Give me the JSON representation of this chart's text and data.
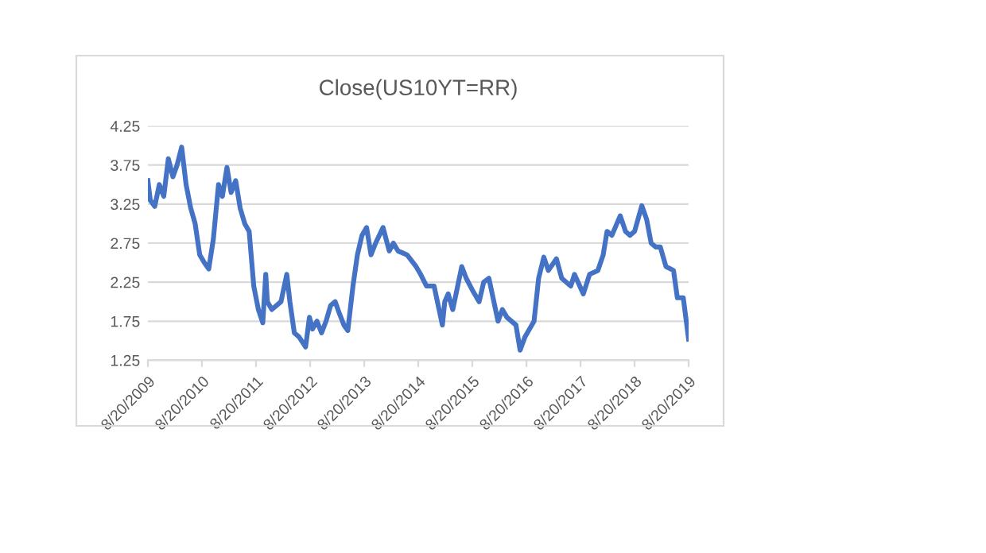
{
  "chart_data": {
    "type": "line",
    "title": "Close(US10YT=RR)",
    "x": [
      "2009-08-20",
      "2009-09-05",
      "2009-10-05",
      "2009-11-05",
      "2009-12-05",
      "2010-01-05",
      "2010-02-05",
      "2010-03-05",
      "2010-04-05",
      "2010-05-05",
      "2010-06-05",
      "2010-07-05",
      "2010-08-05",
      "2010-09-05",
      "2010-10-05",
      "2010-11-05",
      "2010-12-10",
      "2011-01-05",
      "2011-02-05",
      "2011-03-05",
      "2011-04-05",
      "2011-05-05",
      "2011-06-05",
      "2011-07-05",
      "2011-08-05",
      "2011-09-05",
      "2011-10-05",
      "2011-10-25",
      "2011-11-05",
      "2011-12-05",
      "2012-01-05",
      "2012-02-05",
      "2012-03-15",
      "2012-04-05",
      "2012-05-05",
      "2012-06-05",
      "2012-07-20",
      "2012-08-15",
      "2012-09-05",
      "2012-10-05",
      "2012-11-05",
      "2012-12-05",
      "2013-01-05",
      "2013-02-05",
      "2013-03-05",
      "2013-04-05",
      "2013-05-01",
      "2013-06-05",
      "2013-07-05",
      "2013-08-05",
      "2013-09-05",
      "2013-10-05",
      "2013-11-05",
      "2013-12-25",
      "2014-02-05",
      "2014-03-05",
      "2014-04-05",
      "2014-06-05",
      "2014-08-05",
      "2014-09-05",
      "2014-10-15",
      "2014-12-05",
      "2015-01-30",
      "2015-02-15",
      "2015-03-10",
      "2015-04-10",
      "2015-06-10",
      "2015-07-10",
      "2015-08-20",
      "2015-10-05",
      "2015-11-05",
      "2015-12-10",
      "2016-02-10",
      "2016-03-10",
      "2016-04-10",
      "2016-06-10",
      "2016-07-08",
      "2016-08-10",
      "2016-10-10",
      "2016-11-10",
      "2016-12-15",
      "2017-01-15",
      "2017-03-10",
      "2017-04-15",
      "2017-06-15",
      "2017-07-10",
      "2017-09-08",
      "2017-10-20",
      "2017-12-15",
      "2018-01-20",
      "2018-02-15",
      "2018-03-20",
      "2018-05-15",
      "2018-06-20",
      "2018-07-20",
      "2018-08-20",
      "2018-10-08",
      "2018-11-10",
      "2018-12-10",
      "2019-01-10",
      "2019-02-10",
      "2019-03-20",
      "2019-05-10",
      "2019-06-05",
      "2019-07-15",
      "2019-08-20"
    ],
    "series": [
      {
        "color": "#4472c4",
        "values": [
          3.55,
          3.3,
          3.22,
          3.5,
          3.35,
          3.83,
          3.6,
          3.75,
          3.98,
          3.5,
          3.2,
          3.0,
          2.6,
          2.5,
          2.42,
          2.8,
          3.5,
          3.35,
          3.72,
          3.4,
          3.55,
          3.2,
          3.0,
          2.9,
          2.2,
          1.9,
          1.73,
          2.35,
          2.0,
          1.9,
          1.95,
          2.0,
          2.35,
          2.0,
          1.6,
          1.55,
          1.42,
          1.8,
          1.65,
          1.75,
          1.6,
          1.75,
          1.95,
          2.0,
          1.85,
          1.7,
          1.63,
          2.2,
          2.6,
          2.85,
          2.95,
          2.6,
          2.75,
          2.95,
          2.65,
          2.75,
          2.65,
          2.6,
          2.45,
          2.35,
          2.2,
          2.2,
          1.7,
          2.0,
          2.1,
          1.9,
          2.45,
          2.3,
          2.15,
          2.0,
          2.25,
          2.3,
          1.75,
          1.9,
          1.8,
          1.7,
          1.38,
          1.55,
          1.75,
          2.3,
          2.57,
          2.4,
          2.55,
          2.3,
          2.2,
          2.35,
          2.1,
          2.35,
          2.4,
          2.6,
          2.9,
          2.85,
          3.1,
          2.9,
          2.85,
          2.9,
          3.23,
          3.05,
          2.75,
          2.7,
          2.7,
          2.45,
          2.4,
          2.05,
          2.05,
          1.52
        ]
      }
    ],
    "xlim": [
      "2009-08-20",
      "2019-08-20"
    ],
    "xticks": [
      {
        "value": "2009-08-20",
        "label": "8/20/2009"
      },
      {
        "value": "2010-08-20",
        "label": "8/20/2010"
      },
      {
        "value": "2011-08-20",
        "label": "8/20/2011"
      },
      {
        "value": "2012-08-20",
        "label": "8/20/2012"
      },
      {
        "value": "2013-08-20",
        "label": "8/20/2013"
      },
      {
        "value": "2014-08-20",
        "label": "8/20/2014"
      },
      {
        "value": "2015-08-20",
        "label": "8/20/2015"
      },
      {
        "value": "2016-08-20",
        "label": "8/20/2016"
      },
      {
        "value": "2017-08-20",
        "label": "8/20/2017"
      },
      {
        "value": "2018-08-20",
        "label": "8/20/2018"
      },
      {
        "value": "2019-08-20",
        "label": "8/20/2019"
      }
    ],
    "ylim": [
      1.25,
      4.25
    ],
    "yticks": [
      {
        "value": 1.25,
        "label": "1.25"
      },
      {
        "value": 1.75,
        "label": "1.75"
      },
      {
        "value": 2.25,
        "label": "2.25"
      },
      {
        "value": 2.75,
        "label": "2.75"
      },
      {
        "value": 3.25,
        "label": "3.25"
      },
      {
        "value": 3.75,
        "label": "3.75"
      },
      {
        "value": 4.25,
        "label": "4.25"
      }
    ],
    "grid": "y",
    "legend": false,
    "marker": "none",
    "line_style": "solid"
  }
}
